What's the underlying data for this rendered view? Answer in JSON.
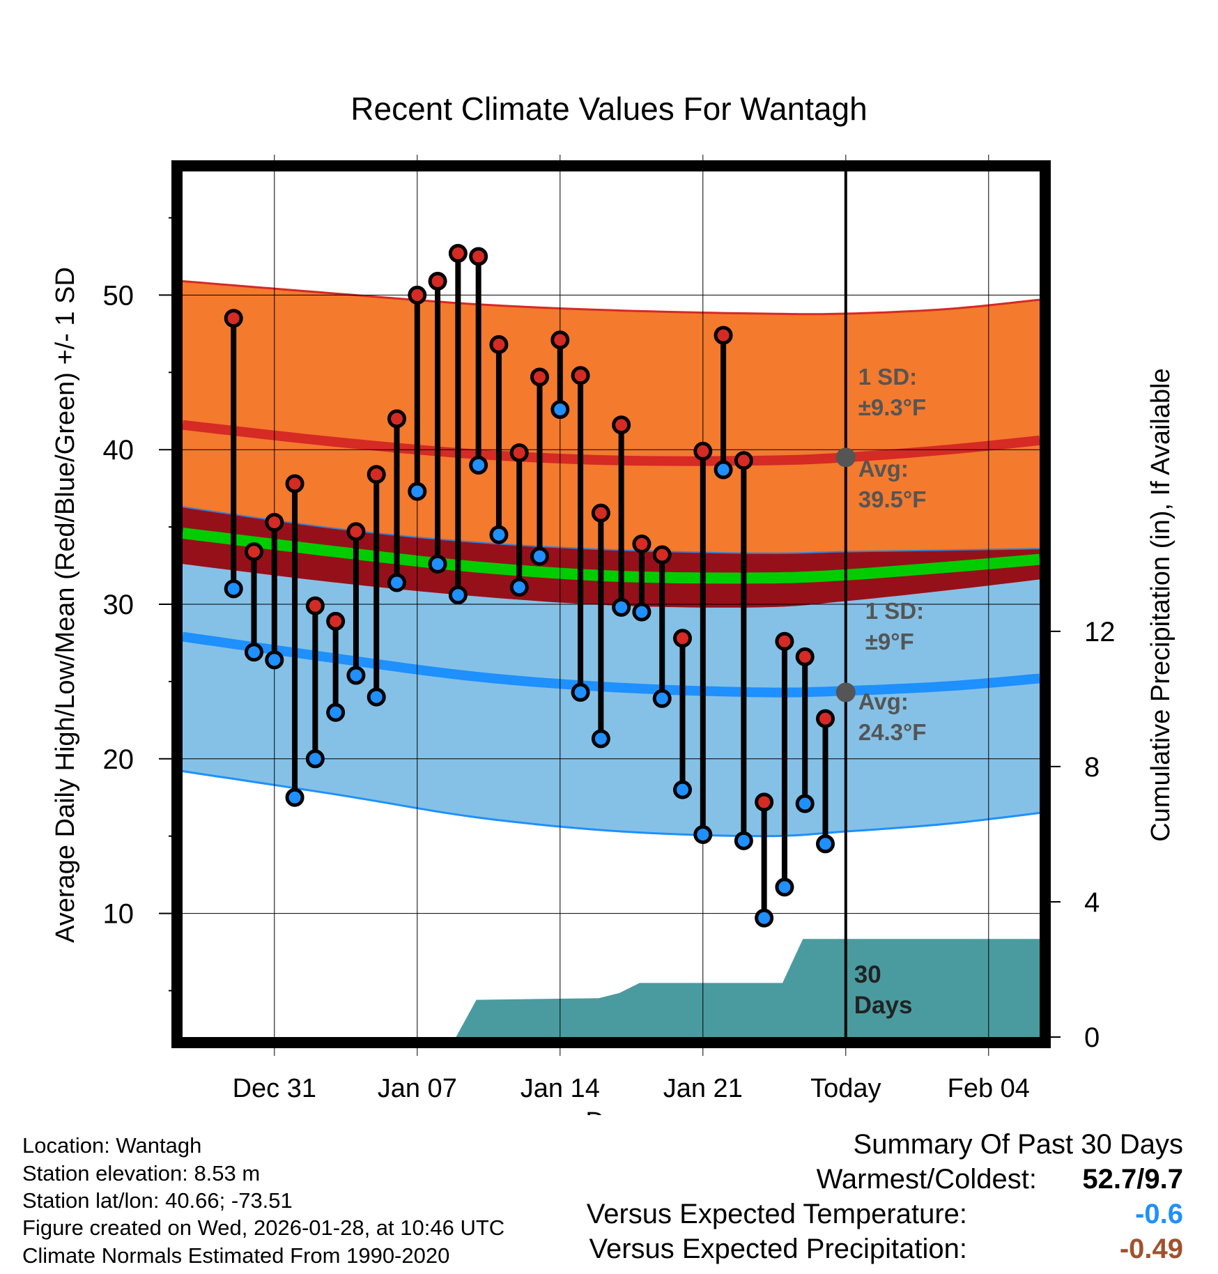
{
  "chart_data": {
    "type": "line",
    "title": "Recent Climate Values For Wantagh",
    "xlabel": "Day",
    "ylabel_left": "Average Daily High/Low/Mean (Red/Blue/Green) +/- 1 SD",
    "ylabel_right": "Cumulative Precipitation (in), If Available",
    "x_range_days": [
      -32.5,
      9.5
    ],
    "left_ylim": [
      2,
      58
    ],
    "right_ylim": [
      0,
      25.6
    ],
    "left_yticks": [
      10,
      20,
      30,
      40,
      50
    ],
    "right_yticks": [
      0,
      4,
      8,
      12
    ],
    "x_ticks": [
      {
        "day": -28,
        "label": "Dec 31"
      },
      {
        "day": -21,
        "label": "Jan 07"
      },
      {
        "day": -14,
        "label": "Jan 14"
      },
      {
        "day": -7,
        "label": "Jan 21"
      },
      {
        "day": 0,
        "label": "Today"
      },
      {
        "day": 7,
        "label": "Feb 04"
      }
    ],
    "normals": {
      "days": [
        -32.5,
        -25,
        -18,
        -11,
        -4,
        0,
        5,
        9.5
      ],
      "high_upper": [
        50.9,
        50.1,
        49.4,
        49.0,
        48.8,
        48.8,
        49.1,
        49.7
      ],
      "high_mean": [
        41.6,
        40.5,
        39.7,
        39.3,
        39.3,
        39.5,
        40.0,
        40.6
      ],
      "high_lower": [
        36.3,
        34.9,
        34.0,
        33.5,
        33.3,
        33.4,
        33.5,
        33.6
      ],
      "low_upper": [
        32.6,
        31.4,
        30.5,
        29.9,
        29.8,
        30.2,
        30.9,
        31.6
      ],
      "low_mean": [
        27.9,
        26.5,
        25.3,
        24.6,
        24.3,
        24.4,
        24.7,
        25.2
      ],
      "low_lower": [
        19.2,
        17.7,
        16.2,
        15.3,
        15.0,
        15.3,
        15.8,
        16.5
      ],
      "mean": [
        34.6,
        33.4,
        32.4,
        31.8,
        31.7,
        31.9,
        32.4,
        32.9
      ]
    },
    "observed": {
      "days": [
        -30,
        -29,
        -28,
        -27,
        -26,
        -25,
        -24,
        -23,
        -22,
        -21,
        -20,
        -19,
        -18,
        -17,
        -16,
        -15,
        -14,
        -13,
        -12,
        -11,
        -10,
        -9,
        -8,
        -7,
        -6,
        -5,
        -4,
        -3,
        -2,
        -1
      ],
      "highs": [
        48.5,
        33.4,
        35.3,
        37.8,
        29.9,
        28.9,
        34.7,
        38.4,
        42.0,
        50.0,
        50.9,
        52.7,
        52.5,
        46.8,
        39.8,
        44.7,
        47.1,
        44.8,
        35.9,
        41.6,
        33.9,
        33.2,
        27.8,
        39.9,
        47.4,
        39.3,
        17.2,
        27.6,
        26.6,
        22.6
      ],
      "lows": [
        31.0,
        26.9,
        26.4,
        17.5,
        20.0,
        23.0,
        25.4,
        24.0,
        31.4,
        37.3,
        32.6,
        30.6,
        39.0,
        34.5,
        31.1,
        33.1,
        42.6,
        24.3,
        21.3,
        29.8,
        29.5,
        23.9,
        18.0,
        15.1,
        38.7,
        14.7,
        9.7,
        11.7,
        17.1,
        14.5
      ]
    },
    "precip_cumulative": {
      "days": [
        -32.5,
        -19.1,
        -18.1,
        -12.1,
        -11.1,
        -10.1,
        -3.1,
        -2.1,
        0,
        9.5
      ],
      "values": [
        0,
        0,
        1.1,
        1.15,
        1.3,
        1.6,
        1.6,
        2.9,
        2.9,
        2.9
      ]
    },
    "annotations": {
      "high_sd_title": "1 SD:",
      "high_sd_value": "±9.3°F",
      "high_avg_title": "Avg:",
      "high_avg_value": "39.5°F",
      "high_avg_marker": 39.5,
      "low_sd_title": "1 SD:",
      "low_sd_value": "±9°F",
      "low_avg_title": "Avg:",
      "low_avg_value": "24.3°F",
      "low_avg_marker": 24.3,
      "window_label_1": "30",
      "window_label_2": "Days"
    }
  },
  "colors": {
    "high_band": "#f47a2e",
    "high_line": "#d62a24",
    "low_band": "#85c1e6",
    "low_line": "#1e90ff",
    "mean_line": "#00cc00",
    "overlap_band": "#96101a",
    "precip": "#4a9ba0",
    "high_point": "#d62a24",
    "low_point": "#1e90ff",
    "annot": "#555555",
    "sum_temp": "#1e90ff",
    "sum_precip": "#a0522d"
  },
  "meta": {
    "location": "Location: Wantagh",
    "elevation": "Station elevation: 8.53 m",
    "latlon": "Station lat/lon: 40.66; -73.51",
    "created": "Figure created on Wed, 2026-01-28, at 10:46 UTC",
    "normals": "Climate Normals Estimated From 1990-2020"
  },
  "summary": {
    "title": "Summary Of Past 30 Days",
    "warm_cold_label": "Warmest/Coldest:",
    "warm_cold_value": "52.7/9.7",
    "temp_label": "Versus Expected Temperature:",
    "temp_value": "-0.6",
    "precip_label": "Versus Expected Precipitation:",
    "precip_value": "-0.49"
  }
}
